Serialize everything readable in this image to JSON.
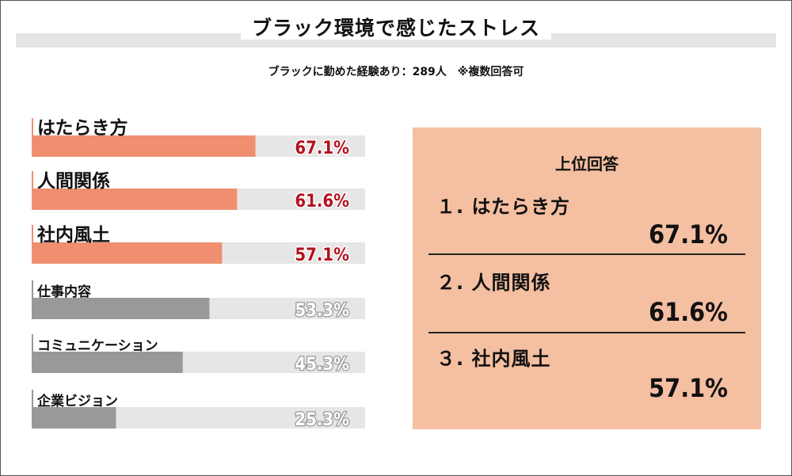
{
  "title": "ブラック環境で感じたストレス",
  "subtitle": "ブラックに勤めた経験あり：289人　※複数回答可",
  "chart_data": {
    "type": "bar",
    "orientation": "horizontal",
    "categories": [
      "はたらき方",
      "人間関係",
      "社内風土",
      "仕事内容",
      "コミュニケーション",
      "企業ビジョン"
    ],
    "values": [
      67.1,
      61.6,
      57.1,
      53.3,
      45.3,
      25.3
    ],
    "value_labels": [
      "67.1%",
      "61.6%",
      "57.1%",
      "53.3%",
      "45.3%",
      "25.3%"
    ],
    "xlim": [
      0,
      100
    ],
    "highlighted_count": 3,
    "colors": {
      "highlight": "#ef8f70",
      "normal": "#999999",
      "track": "#e6e6e6",
      "panel": "#f5bfa1"
    }
  },
  "top_answers": {
    "heading": "上位回答",
    "items": [
      {
        "label": "１. はたらき方",
        "value": "67.1%"
      },
      {
        "label": "２. 人間関係",
        "value": "61.6%"
      },
      {
        "label": "３. 社内風土",
        "value": "57.1%"
      }
    ]
  }
}
